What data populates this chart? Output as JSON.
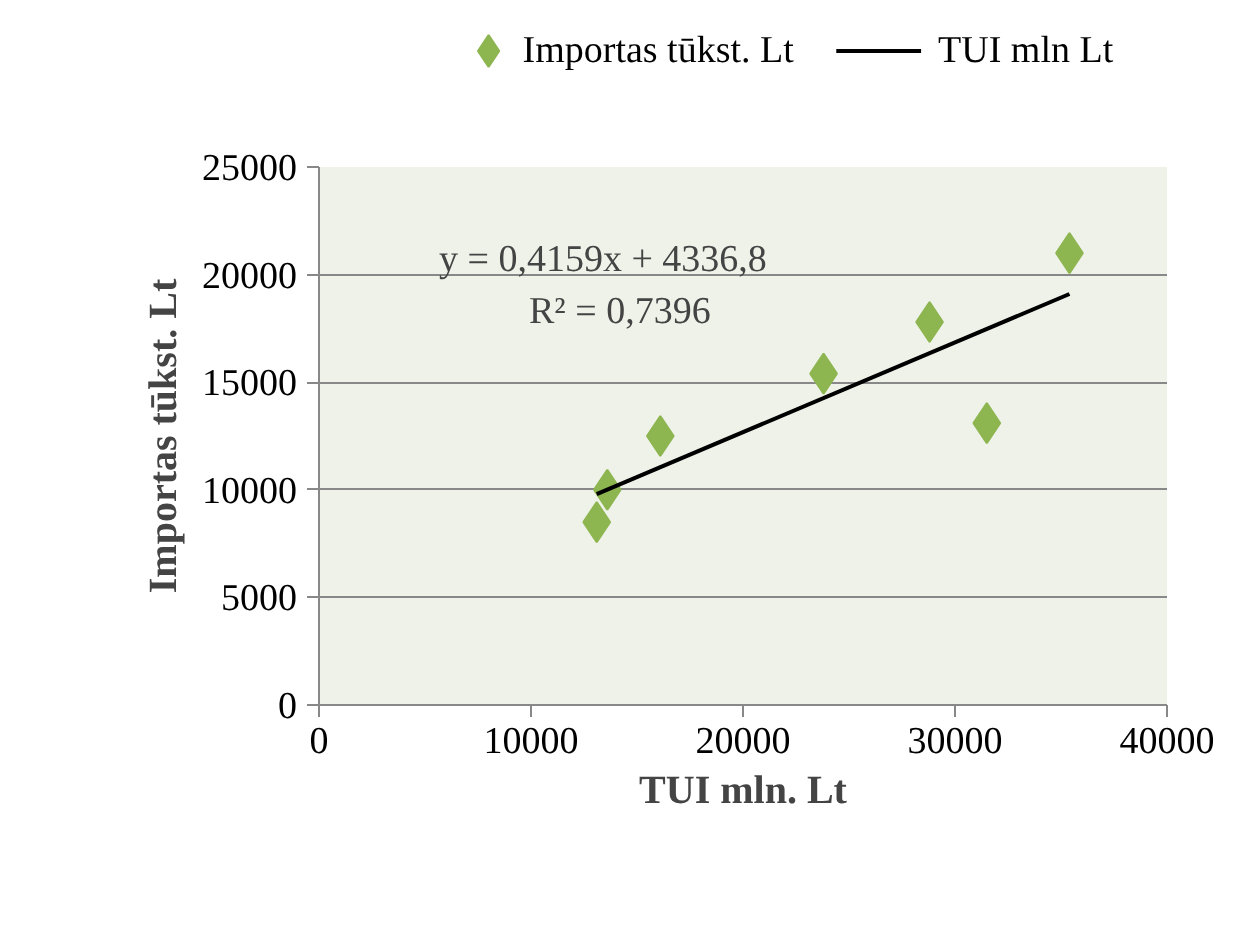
{
  "chart_data": {
    "type": "scatter",
    "xlabel": "TUI mln. Lt",
    "ylabel": "Importas tūkst. Lt",
    "xlim": [
      0,
      40000
    ],
    "xticks": [
      0,
      10000,
      20000,
      30000,
      40000
    ],
    "ylim": [
      0,
      25000
    ],
    "yticks": [
      0,
      5000,
      10000,
      15000,
      20000,
      25000
    ],
    "grid": "y",
    "legend": "top",
    "annotations": [
      "y = 0,4159x + 4336,8",
      "R² = 0,7396"
    ],
    "series": [
      {
        "name": "Importas tūkst. Lt",
        "marker": "diamond",
        "color": "#8db550",
        "x": [
          13100,
          13600,
          16100,
          23800,
          28800,
          31500,
          35400
        ],
        "values": [
          8500,
          10000,
          12500,
          15400,
          17800,
          13100,
          21000
        ]
      },
      {
        "name": "TUI mln Lt",
        "type": "line",
        "color": "#000000",
        "x": [
          13100,
          35400
        ],
        "values": [
          9800,
          19100
        ]
      }
    ]
  }
}
